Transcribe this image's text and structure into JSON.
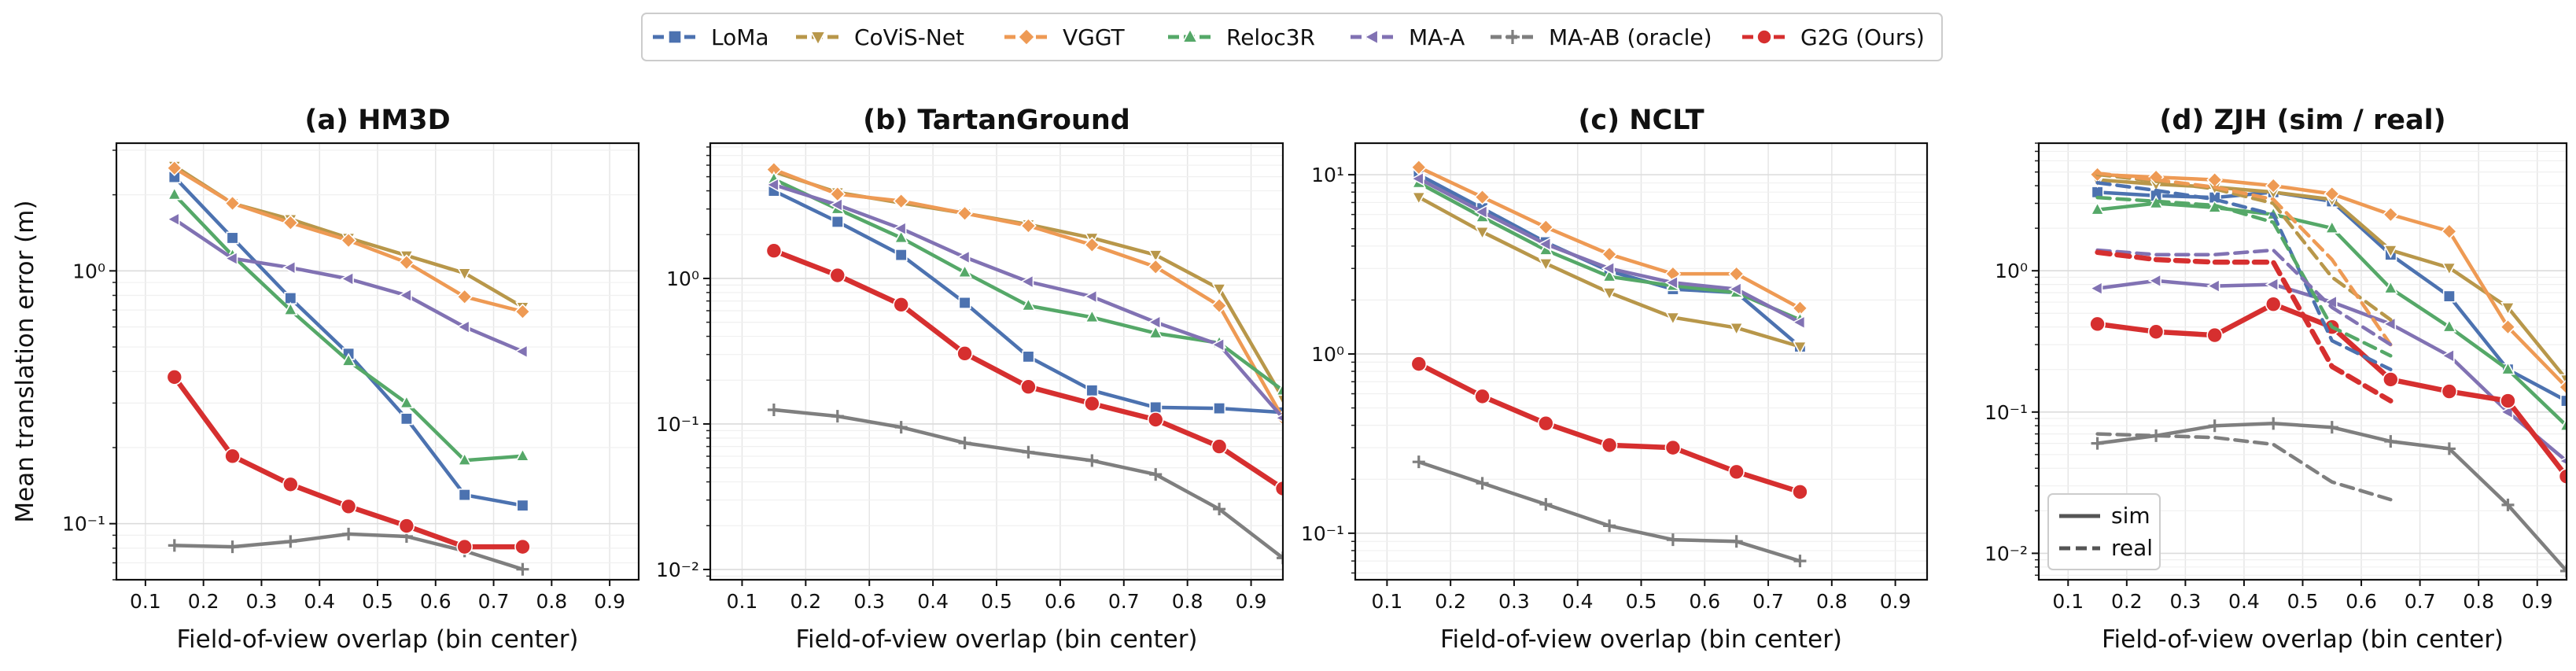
{
  "chart_data": {
    "type": "line",
    "ylabel": "Mean translation error (m)",
    "xlabel": "Field-of-view overlap (bin center)",
    "x_ticks": [
      0.1,
      0.2,
      0.3,
      0.4,
      0.5,
      0.6,
      0.7,
      0.8,
      0.9
    ],
    "y_scale": "log",
    "grid": true,
    "legend": {
      "placement": "top-center, above panels",
      "entries": [
        {
          "name": "LoMa",
          "color": "#4c72b0",
          "marker": "square"
        },
        {
          "name": "CoViS-Net",
          "color": "#b8974a",
          "marker": "triangle-down"
        },
        {
          "name": "VGGT",
          "color": "#ee9a54",
          "marker": "diamond"
        },
        {
          "name": "Reloc3R",
          "color": "#55a868",
          "marker": "triangle-up"
        },
        {
          "name": "MA-A",
          "color": "#8172b3",
          "marker": "triangle-left"
        },
        {
          "name": "MA-AB (oracle)",
          "color": "#7f7f7f",
          "marker": "plus"
        },
        {
          "name": "G2G (Ours)",
          "color": "#d62f2f",
          "marker": "circle"
        }
      ]
    },
    "line_style_legend": {
      "placement": "lower-left of panel (d)",
      "entries": [
        "sim",
        "real"
      ]
    },
    "panels": [
      {
        "title": "(a) HM3D",
        "xlim": [
          0.05,
          0.95
        ],
        "ylim": [
          0.06,
          3.2
        ],
        "y_ticks": [
          0.1,
          1
        ],
        "y_tick_labels": [
          "10⁻¹",
          "10⁰"
        ],
        "series": [
          {
            "name": "LoMa",
            "style": "solid",
            "x": [
              0.15,
              0.25,
              0.35,
              0.45,
              0.55,
              0.65,
              0.75
            ],
            "values": [
              2.35,
              1.35,
              0.78,
              0.47,
              0.26,
              0.13,
              0.118
            ]
          },
          {
            "name": "CoViS-Net",
            "style": "solid",
            "x": [
              0.15,
              0.25,
              0.35,
              0.45,
              0.55,
              0.65,
              0.75
            ],
            "values": [
              2.6,
              1.85,
              1.6,
              1.35,
              1.15,
              0.98,
              0.72
            ]
          },
          {
            "name": "VGGT",
            "style": "solid",
            "x": [
              0.15,
              0.25,
              0.35,
              0.45,
              0.55,
              0.65,
              0.75
            ],
            "values": [
              2.55,
              1.85,
              1.55,
              1.32,
              1.08,
              0.79,
              0.69
            ]
          },
          {
            "name": "Reloc3R",
            "style": "solid",
            "x": [
              0.15,
              0.25,
              0.35,
              0.45,
              0.55,
              0.65,
              0.75
            ],
            "values": [
              2.0,
              1.15,
              0.7,
              0.44,
              0.3,
              0.178,
              0.185
            ]
          },
          {
            "name": "MA-A",
            "style": "solid",
            "x": [
              0.15,
              0.25,
              0.35,
              0.45,
              0.55,
              0.65,
              0.75
            ],
            "values": [
              1.6,
              1.12,
              1.03,
              0.93,
              0.8,
              0.6,
              0.48
            ]
          },
          {
            "name": "MA-AB (oracle)",
            "style": "solid",
            "x": [
              0.15,
              0.25,
              0.35,
              0.45,
              0.55,
              0.65,
              0.75
            ],
            "values": [
              0.082,
              0.081,
              0.085,
              0.091,
              0.089,
              0.078,
              0.066
            ]
          },
          {
            "name": "G2G (Ours)",
            "style": "solid",
            "x": [
              0.15,
              0.25,
              0.35,
              0.45,
              0.55,
              0.65,
              0.75
            ],
            "values": [
              0.38,
              0.185,
              0.143,
              0.117,
              0.098,
              0.081,
              0.081
            ]
          }
        ]
      },
      {
        "title": "(b) TartanGround",
        "xlim": [
          0.05,
          0.95
        ],
        "ylim": [
          0.0085,
          8.5
        ],
        "y_ticks": [
          0.01,
          0.1,
          1
        ],
        "y_tick_labels": [
          "10⁻²",
          "10⁻¹",
          "10⁰"
        ],
        "series": [
          {
            "name": "LoMa",
            "style": "solid",
            "x": [
              0.15,
              0.25,
              0.35,
              0.45,
              0.55,
              0.65,
              0.75,
              0.85,
              0.95
            ],
            "values": [
              4.0,
              2.45,
              1.45,
              0.68,
              0.29,
              0.17,
              0.13,
              0.128,
              0.12
            ]
          },
          {
            "name": "CoViS-Net",
            "style": "solid",
            "x": [
              0.15,
              0.25,
              0.35,
              0.45,
              0.55,
              0.65,
              0.75,
              0.85,
              0.95
            ],
            "values": [
              5.4,
              3.9,
              3.3,
              2.8,
              2.35,
              1.9,
              1.45,
              0.85,
              0.15
            ]
          },
          {
            "name": "VGGT",
            "style": "solid",
            "x": [
              0.15,
              0.25,
              0.35,
              0.45,
              0.55,
              0.65,
              0.75,
              0.85,
              0.95
            ],
            "values": [
              5.6,
              3.8,
              3.4,
              2.8,
              2.3,
              1.7,
              1.2,
              0.65,
              0.11
            ]
          },
          {
            "name": "Reloc3R",
            "style": "solid",
            "x": [
              0.15,
              0.25,
              0.35,
              0.45,
              0.55,
              0.65,
              0.75,
              0.85,
              0.95
            ],
            "values": [
              4.8,
              3.0,
              1.9,
              1.1,
              0.65,
              0.54,
              0.42,
              0.36,
              0.17
            ]
          },
          {
            "name": "MA-A",
            "style": "solid",
            "x": [
              0.15,
              0.25,
              0.35,
              0.45,
              0.55,
              0.65,
              0.75,
              0.85,
              0.95
            ],
            "values": [
              4.4,
              3.2,
              2.2,
              1.4,
              0.95,
              0.75,
              0.5,
              0.35,
              0.11
            ]
          },
          {
            "name": "MA-AB (oracle)",
            "style": "solid",
            "x": [
              0.15,
              0.25,
              0.35,
              0.45,
              0.55,
              0.65,
              0.75,
              0.85,
              0.95
            ],
            "values": [
              0.125,
              0.113,
              0.095,
              0.074,
              0.064,
              0.056,
              0.045,
              0.026,
              0.012
            ]
          },
          {
            "name": "G2G (Ours)",
            "style": "solid",
            "x": [
              0.15,
              0.25,
              0.35,
              0.45,
              0.55,
              0.65,
              0.75,
              0.85,
              0.95
            ],
            "values": [
              1.55,
              1.05,
              0.66,
              0.305,
              0.18,
              0.138,
              0.107,
              0.07,
              0.036
            ]
          }
        ]
      },
      {
        "title": "(c) NCLT",
        "xlim": [
          0.05,
          0.95
        ],
        "ylim": [
          0.055,
          15
        ],
        "y_ticks": [
          0.1,
          1,
          10
        ],
        "y_tick_labels": [
          "10⁻¹",
          "10⁰",
          "10¹"
        ],
        "series": [
          {
            "name": "LoMa",
            "style": "solid",
            "x": [
              0.15,
              0.25,
              0.35,
              0.45,
              0.55,
              0.65,
              0.75
            ],
            "values": [
              10.0,
              6.5,
              4.2,
              2.9,
              2.3,
              2.2,
              1.1
            ]
          },
          {
            "name": "CoViS-Net",
            "style": "solid",
            "x": [
              0.15,
              0.25,
              0.35,
              0.45,
              0.55,
              0.65,
              0.75
            ],
            "values": [
              7.5,
              4.8,
              3.2,
              2.2,
              1.6,
              1.4,
              1.1
            ]
          },
          {
            "name": "VGGT",
            "style": "solid",
            "x": [
              0.15,
              0.25,
              0.35,
              0.45,
              0.55,
              0.65,
              0.75
            ],
            "values": [
              11.0,
              7.5,
              5.1,
              3.6,
              2.8,
              2.8,
              1.8
            ]
          },
          {
            "name": "Reloc3R",
            "style": "solid",
            "x": [
              0.15,
              0.25,
              0.35,
              0.45,
              0.55,
              0.65,
              0.75
            ],
            "values": [
              9.0,
              5.8,
              3.8,
              2.7,
              2.4,
              2.2,
              1.55
            ]
          },
          {
            "name": "MA-A",
            "style": "solid",
            "x": [
              0.15,
              0.25,
              0.35,
              0.45,
              0.55,
              0.65,
              0.75
            ],
            "values": [
              9.5,
              6.2,
              4.1,
              3.0,
              2.5,
              2.3,
              1.5
            ]
          },
          {
            "name": "MA-AB (oracle)",
            "style": "solid",
            "x": [
              0.15,
              0.25,
              0.35,
              0.45,
              0.55,
              0.65,
              0.75
            ],
            "values": [
              0.25,
              0.19,
              0.145,
              0.11,
              0.092,
              0.09,
              0.07
            ]
          },
          {
            "name": "G2G (Ours)",
            "style": "solid",
            "x": [
              0.15,
              0.25,
              0.35,
              0.45,
              0.55,
              0.65,
              0.75
            ],
            "values": [
              0.88,
              0.58,
              0.41,
              0.31,
              0.3,
              0.22,
              0.17
            ]
          }
        ]
      },
      {
        "title": "(d) ZJH (sim / real)",
        "xlim": [
          0.05,
          0.95
        ],
        "ylim": [
          0.0065,
          8
        ],
        "y_ticks": [
          0.01,
          0.1,
          1
        ],
        "y_tick_labels": [
          "10⁻²",
          "10⁻¹",
          "10⁰"
        ],
        "series": [
          {
            "name": "LoMa",
            "style": "solid",
            "x": [
              0.15,
              0.25,
              0.35,
              0.45,
              0.55,
              0.65,
              0.75,
              0.85,
              0.95
            ],
            "values": [
              3.6,
              3.4,
              3.3,
              3.6,
              3.1,
              1.3,
              0.66,
              0.2,
              0.12
            ]
          },
          {
            "name": "CoViS-Net",
            "style": "solid",
            "x": [
              0.15,
              0.25,
              0.35,
              0.45,
              0.55,
              0.65,
              0.75,
              0.85,
              0.95
            ],
            "values": [
              4.4,
              4.1,
              3.9,
              3.6,
              3.2,
              1.4,
              1.05,
              0.55,
              0.17
            ]
          },
          {
            "name": "VGGT",
            "style": "solid",
            "x": [
              0.15,
              0.25,
              0.35,
              0.45,
              0.55,
              0.65,
              0.75,
              0.85,
              0.95
            ],
            "values": [
              4.8,
              4.6,
              4.4,
              4.0,
              3.5,
              2.5,
              1.9,
              0.4,
              0.15
            ]
          },
          {
            "name": "Reloc3R",
            "style": "solid",
            "x": [
              0.15,
              0.25,
              0.35,
              0.45,
              0.55,
              0.65,
              0.75,
              0.85,
              0.95
            ],
            "values": [
              2.7,
              3.0,
              2.8,
              2.5,
              2.0,
              0.75,
              0.4,
              0.2,
              0.08
            ]
          },
          {
            "name": "MA-A",
            "style": "solid",
            "x": [
              0.15,
              0.25,
              0.35,
              0.45,
              0.55,
              0.65,
              0.75,
              0.85,
              0.95
            ],
            "values": [
              0.75,
              0.85,
              0.78,
              0.8,
              0.6,
              0.42,
              0.25,
              0.1,
              0.045
            ]
          },
          {
            "name": "MA-AB (oracle)",
            "style": "solid",
            "x": [
              0.15,
              0.25,
              0.35,
              0.45,
              0.55,
              0.65,
              0.75,
              0.85,
              0.95
            ],
            "values": [
              0.06,
              0.068,
              0.08,
              0.083,
              0.078,
              0.062,
              0.055,
              0.022,
              0.0075
            ]
          },
          {
            "name": "G2G (Ours)",
            "style": "solid",
            "x": [
              0.15,
              0.25,
              0.35,
              0.45,
              0.55,
              0.65,
              0.75,
              0.85,
              0.95
            ],
            "values": [
              0.42,
              0.37,
              0.35,
              0.58,
              0.4,
              0.17,
              0.14,
              0.12,
              0.035
            ]
          },
          {
            "name": "LoMa",
            "style": "dashed",
            "x": [
              0.15,
              0.25,
              0.35,
              0.45,
              0.55,
              0.65
            ],
            "values": [
              4.2,
              3.7,
              3.2,
              2.5,
              0.32,
              0.2
            ]
          },
          {
            "name": "CoViS-Net",
            "style": "dashed",
            "x": [
              0.15,
              0.25,
              0.35,
              0.45,
              0.55,
              0.65
            ],
            "values": [
              4.8,
              4.3,
              3.8,
              3.0,
              0.9,
              0.45
            ]
          },
          {
            "name": "VGGT",
            "style": "dashed",
            "x": [
              0.15,
              0.25,
              0.35,
              0.45,
              0.55,
              0.65
            ],
            "values": [
              4.9,
              4.4,
              3.9,
              3.2,
              1.2,
              0.3
            ]
          },
          {
            "name": "Reloc3R",
            "style": "dashed",
            "x": [
              0.15,
              0.25,
              0.35,
              0.45,
              0.55,
              0.65
            ],
            "values": [
              3.3,
              3.1,
              2.9,
              2.2,
              0.4,
              0.25
            ]
          },
          {
            "name": "MA-A",
            "style": "dashed",
            "x": [
              0.15,
              0.25,
              0.35,
              0.45,
              0.55,
              0.65
            ],
            "values": [
              1.4,
              1.3,
              1.3,
              1.4,
              0.55,
              0.3
            ]
          },
          {
            "name": "MA-AB (oracle)",
            "style": "dashed",
            "x": [
              0.15,
              0.25,
              0.35,
              0.45,
              0.55,
              0.65
            ],
            "values": [
              0.07,
              0.068,
              0.066,
              0.059,
              0.032,
              0.024
            ]
          },
          {
            "name": "G2G (Ours)",
            "style": "dashed",
            "x": [
              0.15,
              0.25,
              0.35,
              0.45,
              0.55,
              0.65
            ],
            "values": [
              1.35,
              1.2,
              1.15,
              1.15,
              0.21,
              0.12
            ]
          }
        ]
      }
    ]
  }
}
